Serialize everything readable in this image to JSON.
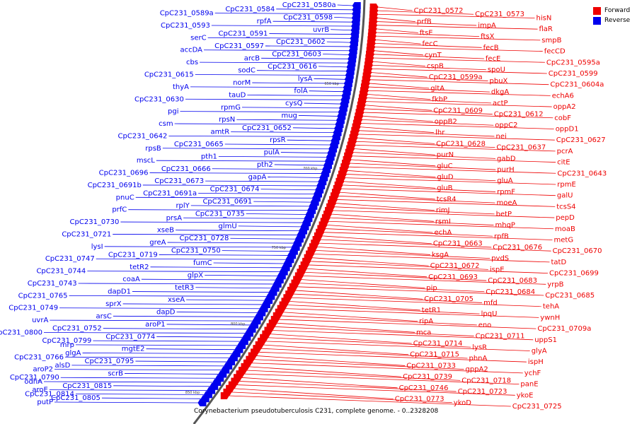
{
  "title": "Corynebacterium pseudotuberculosis C231, complete genome. - 0..2328208",
  "legend": [
    {
      "label": "Forward",
      "color": "#ee0000"
    },
    {
      "label": "Reverse",
      "color": "#0000ee"
    }
  ],
  "backbone_ticks": [
    "650 kbp",
    "700 kbp",
    "750 kbp",
    "800 kbp",
    "850 kbp"
  ],
  "forward_labels": [
    "CpC231_0572",
    "CpC231_0573",
    "hisN",
    "prfB",
    "impA",
    "flaR",
    "ftsE",
    "ftsX",
    "smpB",
    "fecC",
    "fecB",
    "fecCD",
    "cynT",
    "fecE",
    "CpC231_0595a",
    "cspB",
    "spoU",
    "CpC231_0599",
    "CpC231_0599a",
    "pbuX",
    "CpC231_0604a",
    "gltA",
    "dkgA",
    "echA6",
    "fkbP",
    "actP",
    "oppA2",
    "CpC231_0609",
    "CpC231_0612",
    "cobF",
    "oppB2",
    "oppC2",
    "oppD1",
    "lhr",
    "nei",
    "CpC231_0627",
    "CpC231_0628",
    "CpC231_0637",
    "pcrA",
    "purN",
    "gabD",
    "citE",
    "gluC",
    "purH",
    "CpC231_0643",
    "gluD",
    "gluA",
    "rpmE",
    "gluB",
    "rpmF",
    "galU",
    "tcsR4",
    "moeA",
    "tcsS4",
    "rimJ",
    "betP",
    "pepD",
    "rsmI",
    "mhqP",
    "moaB",
    "echA",
    "rpfB",
    "metG",
    "CpC231_0663",
    "CpC231_0676",
    "CpC231_0670",
    "ksgA",
    "pvdS",
    "tatD",
    "CpC231_0672",
    "ispE",
    "CpC231_0699",
    "CpC231_0693",
    "CpC231_0683",
    "yrpB",
    "pip",
    "CpC231_0684",
    "CpC231_0685",
    "CpC231_0705",
    "mfd",
    "tehA",
    "tetR1",
    "lpqU",
    "ywnH",
    "ripA",
    "eno",
    "CpC231_0709a",
    "mca",
    "CpC231_0711",
    "uppS1",
    "CpC231_0714",
    "lysR",
    "glyA",
    "CpC231_0715",
    "phnA",
    "ispH",
    "CpC231_0733",
    "gppA2",
    "ychF",
    "CpC231_0739",
    "CpC231_0718",
    "panE",
    "CpC231_0746",
    "CpC231_0723",
    "ykoE",
    "CpC231_0773",
    "ykoD",
    "CpC231_0725"
  ],
  "reverse_labels": [
    "CpC231_0580a",
    "CpC231_0584",
    "CpC231_0589a",
    "CpC231_0598",
    "rpfA",
    "CpC231_0593",
    "uvrB",
    "CpC231_0591",
    "serC",
    "CpC231_0602",
    "CpC231_0597",
    "accDA",
    "CpC231_0603",
    "arcB",
    "cbs",
    "CpC231_0616",
    "sodC",
    "CpC231_0615",
    "lysA",
    "norM",
    "thyA",
    "folA",
    "tauD",
    "CpC231_0630",
    "cysQ",
    "rpmG",
    "pgi",
    "mug",
    "rpsN",
    "csm",
    "CpC231_0652",
    "amtR",
    "CpC231_0642",
    "rpsR",
    "CpC231_0665",
    "rpsB",
    "pulA",
    "pth1",
    "mscL",
    "pth2",
    "CpC231_0666",
    "CpC231_0696",
    "gapA",
    "CpC231_0673",
    "CpC231_0691b",
    "CpC231_0674",
    "CpC231_0691a",
    "pnuC",
    "CpC231_0691",
    "rplY",
    "prfC",
    "CpC231_0735",
    "prsA",
    "CpC231_0730",
    "glmU",
    "xseB",
    "CpC231_0721",
    "CpC231_0728",
    "greA",
    "lysI",
    "CpC231_0750",
    "CpC231_0719",
    "CpC231_0747",
    "fumC",
    "tetR2",
    "CpC231_0744",
    "glpX",
    "coaA",
    "CpC231_0743",
    "tetR3",
    "dapD1",
    "CpC231_0765",
    "xseA",
    "sprX",
    "CpC231_0749",
    "dapD",
    "arsC",
    "uvrA",
    "aroP1",
    "CpC231_0752",
    "CpC231_0800",
    "CpC231_0774",
    "CpC231_0799",
    "mrp",
    "mgtE2",
    "glgA",
    "CpC231_0766",
    "CpC231_0795",
    "alsD",
    "aroP2",
    "scrB",
    "CpC231_0790",
    "odhA",
    "CpC231_0815",
    "aroE",
    "CpC231_0814",
    "CpC231_0805",
    "putP"
  ]
}
